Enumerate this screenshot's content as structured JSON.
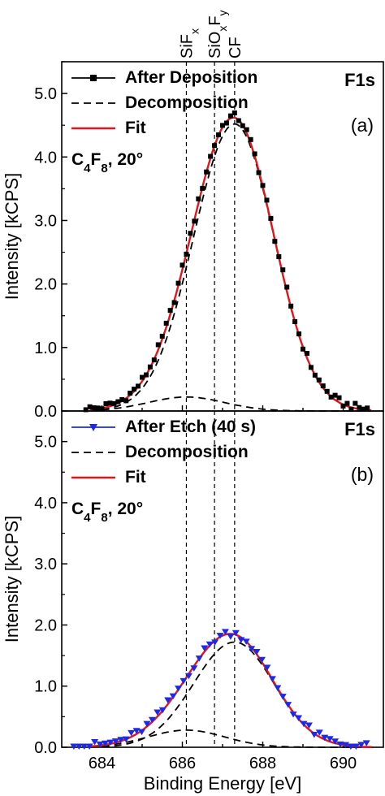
{
  "chart_data": [
    {
      "type": "line",
      "panel_label": "(a)",
      "corner_label": "F1s",
      "condition": {
        "main": "C",
        "sub1": "4",
        "mid": "F",
        "sub2": "8",
        "tail": ", 20°"
      },
      "ylabel": "Intensity [kCPS]",
      "xlabel": "",
      "xlim": [
        683,
        691
      ],
      "ylim": [
        0,
        5.5
      ],
      "yticks": [
        "0.0",
        "1.0",
        "2.0",
        "3.0",
        "4.0",
        "5.0"
      ],
      "xticks": [],
      "reference_lines": [
        {
          "label": "SiF",
          "sub": "x",
          "sub2": "",
          "x": 686.1
        },
        {
          "label": "SiO",
          "sub": "x",
          "mid": "F",
          "sub2": "y",
          "x": 686.8
        },
        {
          "label": "CF",
          "sub": "",
          "sub2": "",
          "x": 687.3
        }
      ],
      "legend": [
        "After Deposition",
        "Decomposition",
        "Fit"
      ],
      "series": [
        {
          "name": "After Deposition",
          "style": "points",
          "marker": "square",
          "color": "#000000",
          "components": [
            {
              "center": 687.3,
              "amp": 4.52,
              "sigma_left": 1.02,
              "sigma_right": 0.98
            },
            {
              "center": 686.1,
              "amp": 0.22,
              "sigma_left": 0.95,
              "sigma_right": 0.95
            }
          ],
          "x_start": 683.6,
          "x_end": 690.6,
          "x_step": 0.1
        },
        {
          "name": "Decomposition",
          "style": "dashed",
          "color": "#000000",
          "peaks": [
            {
              "center": 687.3,
              "amp": 4.52,
              "sigma_left": 1.02,
              "sigma_right": 0.98
            },
            {
              "center": 686.1,
              "amp": 0.22,
              "sigma_left": 0.95,
              "sigma_right": 0.95
            }
          ]
        },
        {
          "name": "Fit",
          "style": "solid",
          "color": "#e3151b"
        }
      ]
    },
    {
      "type": "line",
      "panel_label": "(b)",
      "corner_label": "F1s",
      "condition": {
        "main": "C",
        "sub1": "4",
        "mid": "F",
        "sub2": "8",
        "tail": ", 20°"
      },
      "ylabel": "Intensity [kCPS]",
      "xlabel": "Binding Energy [eV]",
      "xlim": [
        683,
        691
      ],
      "ylim": [
        0,
        5.5
      ],
      "yticks": [
        "0.0",
        "1.0",
        "2.0",
        "3.0",
        "4.0",
        "5.0"
      ],
      "xticks": [
        "684",
        "686",
        "688",
        "690"
      ],
      "reference_lines": [
        {
          "x": 686.1
        },
        {
          "x": 686.8
        },
        {
          "x": 687.3
        }
      ],
      "legend": [
        "After Etch (40 s)",
        "Decomposition",
        "Fit"
      ],
      "series": [
        {
          "name": "After Etch (40 s)",
          "style": "points",
          "marker": "triangle-down",
          "color": "#1d28e8",
          "components": [
            {
              "center": 687.3,
              "amp": 1.72,
              "sigma_left": 1.02,
              "sigma_right": 0.98
            },
            {
              "center": 686.1,
              "amp": 0.28,
              "sigma_left": 0.95,
              "sigma_right": 0.95
            }
          ],
          "x_start": 683.3,
          "x_end": 690.7,
          "x_step": 0.13
        },
        {
          "name": "Decomposition",
          "style": "dashed",
          "color": "#000000",
          "peaks": [
            {
              "center": 687.3,
              "amp": 1.72,
              "sigma_left": 1.02,
              "sigma_right": 0.98
            },
            {
              "center": 686.1,
              "amp": 0.28,
              "sigma_left": 0.95,
              "sigma_right": 0.95
            }
          ]
        },
        {
          "name": "Fit",
          "style": "solid",
          "color": "#e3151b"
        }
      ]
    }
  ]
}
